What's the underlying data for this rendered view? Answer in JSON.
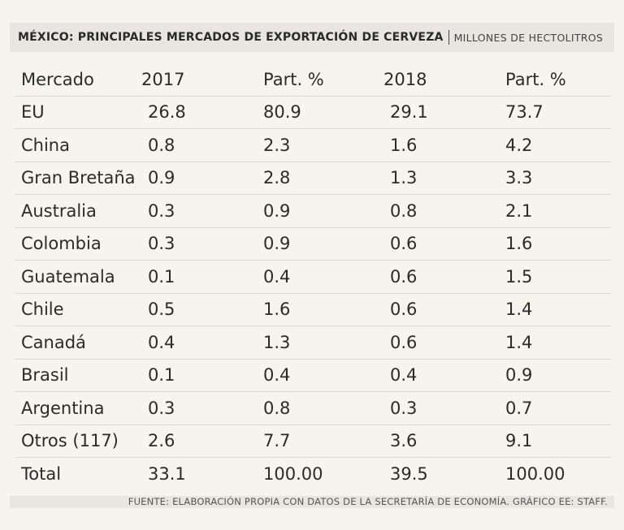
{
  "header": {
    "title": "MÉXICO: PRINCIPALES MERCADOS DE EXPORTACIÓN DE CERVEZA",
    "units": "MILLONES DE HECTOLITROS"
  },
  "chart_data": {
    "type": "table",
    "title": "MÉXICO: PRINCIPALES MERCADOS DE EXPORTACIÓN DE CERVEZA",
    "subtitle": "MILLONES DE HECTOLITROS",
    "columns": [
      "Mercado",
      "2017",
      "Part. %",
      "2018",
      "Part. %"
    ],
    "rows": [
      [
        "EU",
        "26.8",
        "80.9",
        "29.1",
        "73.7"
      ],
      [
        "China",
        "0.8",
        "2.3",
        "1.6",
        "4.2"
      ],
      [
        "Gran Bretaña",
        "0.9",
        "2.8",
        "1.3",
        "3.3"
      ],
      [
        "Australia",
        "0.3",
        "0.9",
        "0.8",
        "2.1"
      ],
      [
        "Colombia",
        "0.3",
        "0.9",
        "0.6",
        "1.6"
      ],
      [
        "Guatemala",
        "0.1",
        "0.4",
        "0.6",
        "1.5"
      ],
      [
        "Chile",
        "0.5",
        "1.6",
        "0.6",
        "1.4"
      ],
      [
        "Canadá",
        "0.4",
        "1.3",
        "0.6",
        "1.4"
      ],
      [
        "Brasil",
        "0.1",
        "0.4",
        "0.4",
        "0.9"
      ],
      [
        "Argentina",
        "0.3",
        "0.8",
        "0.3",
        "0.7"
      ],
      [
        "Otros (117)",
        "2.6",
        "7.7",
        "3.6",
        "9.1"
      ],
      [
        "Total",
        "33.1",
        "100.00",
        "39.5",
        "100.00"
      ]
    ]
  },
  "footer": {
    "source": "FUENTE: ELABORACIÓN PROPIA CON DATOS DE LA SECRETARÍA DE ECONOMÍA. GRÁFICO EE: STAFF."
  }
}
